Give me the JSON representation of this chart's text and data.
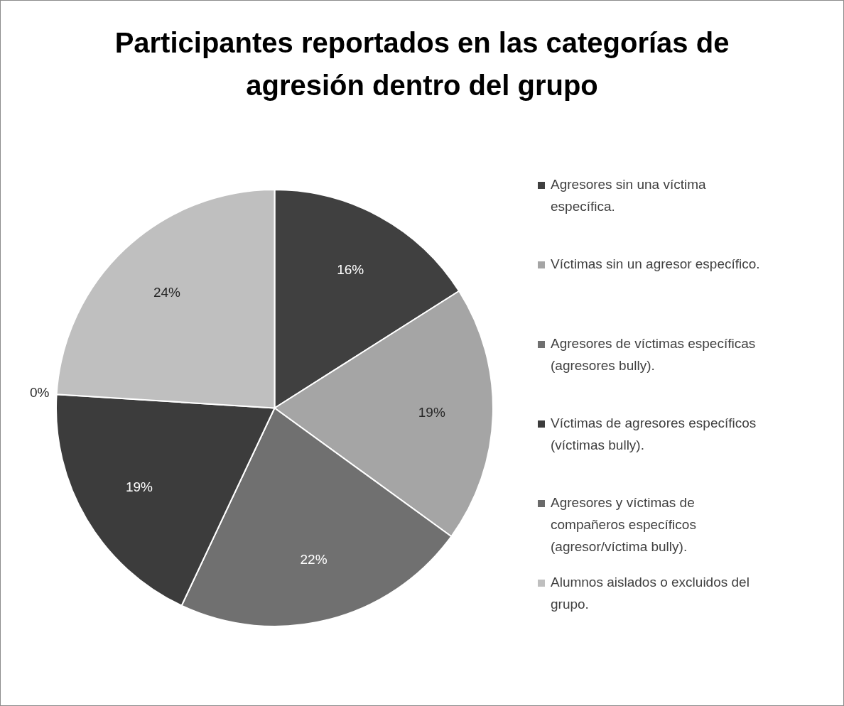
{
  "chart_data": {
    "type": "pie",
    "title": "Participantes reportados en las categorías de agresión dentro del grupo",
    "categories": [
      "Agresores sin una víctima específica.",
      "Víctimas sin un agresor específico.",
      "Agresores de víctimas específicas (agresores bully).",
      "Víctimas de agresores específicos (víctimas bully).",
      "Agresores y víctimas de compañeros específicos (agresor/víctima bully).",
      "Alumnos aislados o excluidos del grupo."
    ],
    "values": [
      16,
      19,
      22,
      19,
      0,
      24
    ],
    "value_labels": [
      "16%",
      "19%",
      "22%",
      "19%",
      "0%",
      "24%"
    ],
    "colors": [
      "#404040",
      "#a5a5a5",
      "#707070",
      "#3c3c3c",
      "#6a6a6a",
      "#bfbfbf"
    ],
    "legend": "right"
  }
}
